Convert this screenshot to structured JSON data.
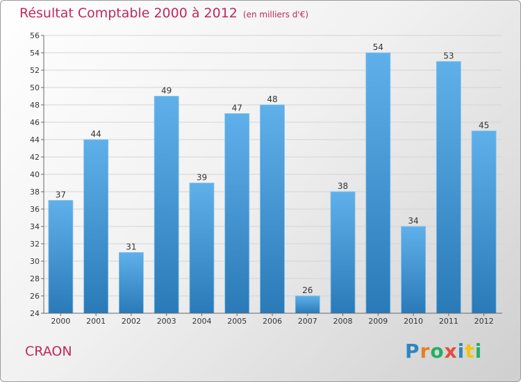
{
  "title": "Résultat Comptable 2000 à 2012",
  "subtitle": "(en milliers d'€)",
  "place": "CRAON",
  "logo": "Proxiti",
  "colors": {
    "title": "#c0285a",
    "bar_top": "#5fb0ea",
    "bar_bottom": "#2a7ab8",
    "logo_letters": [
      "#2e86c1",
      "#e67e22",
      "#27ae60",
      "#e74c3c",
      "#2e86c1",
      "#f1c40f",
      "#27ae60"
    ]
  },
  "chart_data": {
    "type": "bar",
    "categories": [
      "2000",
      "2001",
      "2002",
      "2003",
      "2004",
      "2005",
      "2006",
      "2007",
      "2008",
      "2009",
      "2010",
      "2011",
      "2012"
    ],
    "values": [
      37,
      44,
      31,
      49,
      39,
      47,
      48,
      26,
      38,
      54,
      34,
      53,
      45
    ],
    "ylim": [
      24,
      56
    ],
    "yticks": [
      24,
      26,
      28,
      30,
      32,
      34,
      36,
      38,
      40,
      42,
      44,
      46,
      48,
      50,
      52,
      54,
      56
    ],
    "grid": true,
    "data_labels": true
  }
}
